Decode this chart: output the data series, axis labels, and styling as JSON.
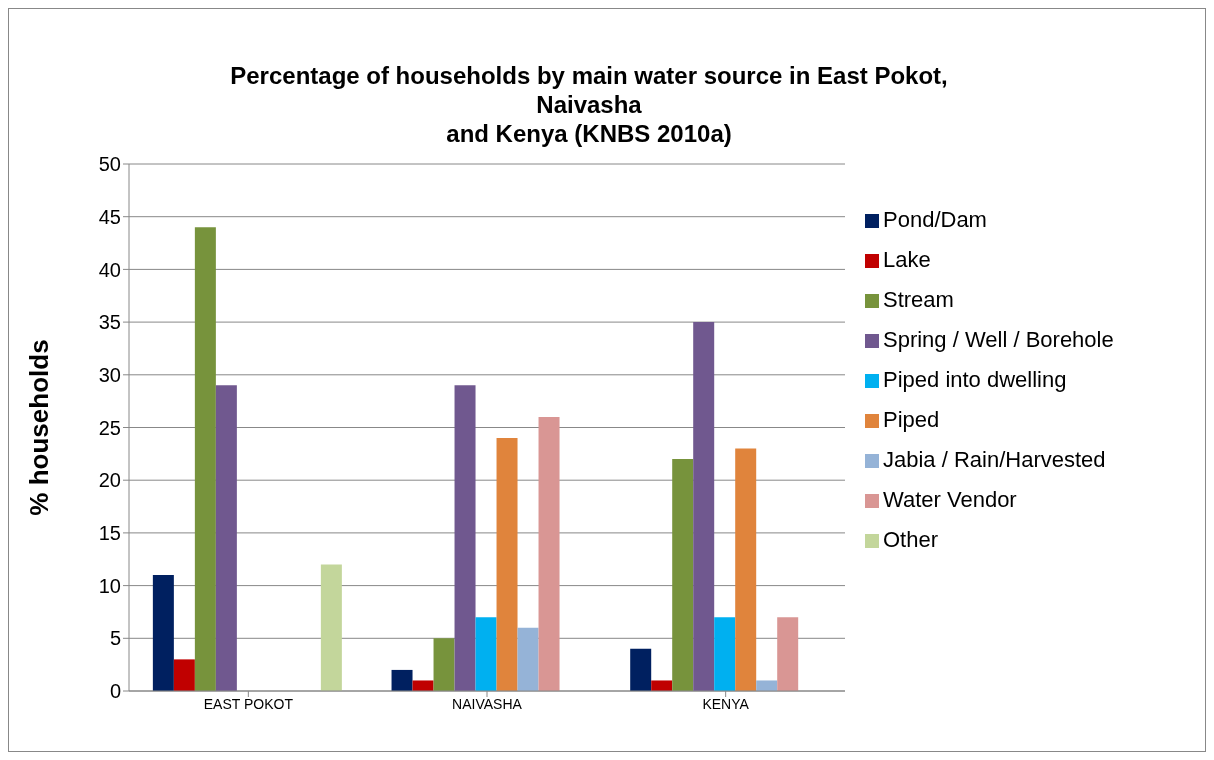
{
  "chart_data": {
    "type": "bar",
    "title": "Percentage of households by main water source in East Pokot,\nNaivasha\nand Kenya (KNBS 2010a)",
    "ylabel": "% households",
    "categories": [
      "EAST POKOT",
      "NAIVASHA",
      "KENYA"
    ],
    "series": [
      {
        "name": "Pond/Dam",
        "color": "#002060",
        "values": [
          11,
          2,
          4
        ]
      },
      {
        "name": "Lake",
        "color": "#c00000",
        "values": [
          3,
          1,
          1
        ]
      },
      {
        "name": "Stream",
        "color": "#77933c",
        "values": [
          44,
          5,
          22
        ]
      },
      {
        "name": "Spring / Well / Borehole",
        "color": "#70588f",
        "values": [
          29,
          29,
          35
        ]
      },
      {
        "name": "Piped into dwelling",
        "color": "#00b0f0",
        "values": [
          0,
          7,
          7
        ]
      },
      {
        "name": "Piped",
        "color": "#e0843c",
        "values": [
          0,
          24,
          23
        ]
      },
      {
        "name": "Jabia / Rain/Harvested",
        "color": "#95b3d7",
        "values": [
          0,
          6,
          1
        ]
      },
      {
        "name": "Water Vendor",
        "color": "#d99694",
        "values": [
          0,
          26,
          7
        ]
      },
      {
        "name": "Other",
        "color": "#c3d69b",
        "values": [
          12,
          0,
          0
        ]
      }
    ],
    "ylim": [
      0,
      50
    ],
    "yticks": [
      0,
      5,
      10,
      15,
      20,
      25,
      30,
      35,
      40,
      45,
      50
    ],
    "grid": "y",
    "legend": "right"
  }
}
